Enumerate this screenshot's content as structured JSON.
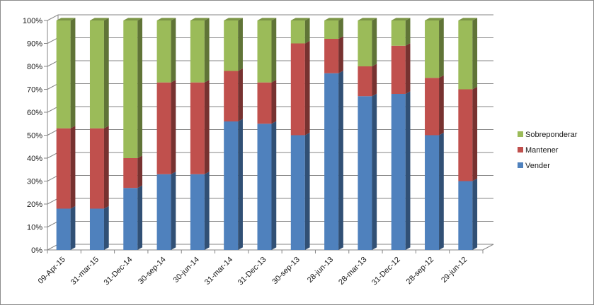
{
  "chart_data": {
    "type": "bar",
    "stacked": "percent",
    "three_d": true,
    "categories": [
      "09-Apr-15",
      "31-mar-15",
      "31-Dec-14",
      "30-sep-14",
      "30-jun-14",
      "31-mar-14",
      "31-Dec-13",
      "30-sep-13",
      "28-jun-13",
      "28-mar-13",
      "31-Dec-12",
      "28-sep-12",
      "29-jun-12"
    ],
    "series": [
      {
        "name": "Vender",
        "color": "#4f81bd",
        "values": [
          18,
          18,
          27,
          33,
          33,
          56,
          55,
          50,
          77,
          67,
          68,
          50,
          30
        ]
      },
      {
        "name": "Mantener",
        "color": "#c0504d",
        "values": [
          35,
          35,
          13,
          40,
          40,
          22,
          18,
          40,
          15,
          13,
          21,
          25,
          40
        ]
      },
      {
        "name": "Sobreponderar",
        "color": "#9bbb59",
        "values": [
          47,
          47,
          60,
          27,
          27,
          22,
          27,
          10,
          8,
          20,
          11,
          25,
          30
        ]
      }
    ],
    "y_ticks": [
      "0%",
      "10%",
      "20%",
      "30%",
      "40%",
      "50%",
      "60%",
      "70%",
      "80%",
      "90%",
      "100%"
    ],
    "ylim": [
      0,
      100
    ],
    "grid": true,
    "legend_position": "right",
    "title": "",
    "xlabel": "",
    "ylabel": ""
  }
}
